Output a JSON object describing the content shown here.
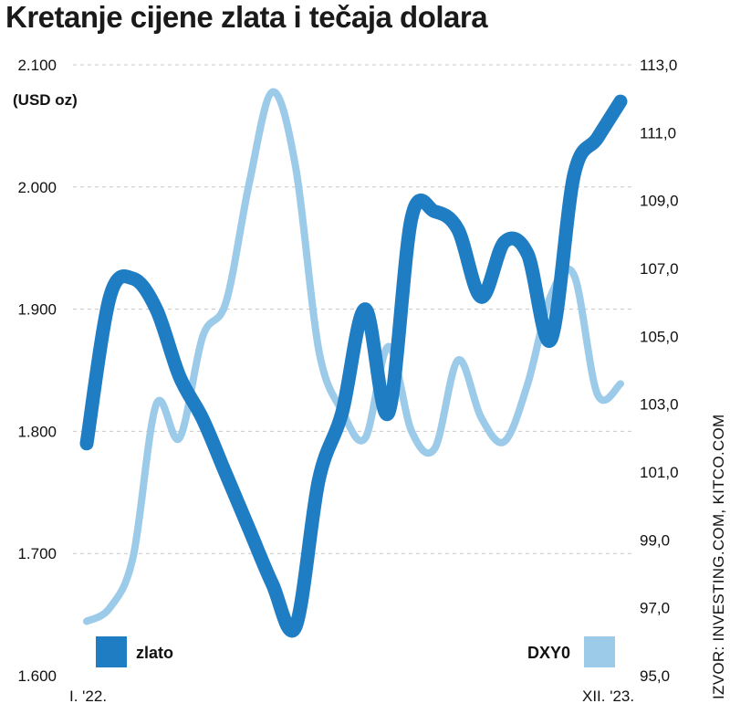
{
  "title": "Kretanje cijene zlata i tečaja dolara",
  "source": "IZVOR: INVESTING.COM, KITCO.COM",
  "colors": {
    "gold": "#1f7dc4",
    "dxy": "#9ccbea"
  },
  "chart_data": {
    "type": "line",
    "title": "Kretanje cijene zlata i tečaja dolara",
    "left_axis": {
      "unit_label": "(USD oz)",
      "ylim": [
        1600,
        2100
      ],
      "ticks": [
        "1.600",
        "1.700",
        "1.800",
        "1.900",
        "2.000",
        "2.100"
      ],
      "tick_values": [
        1600,
        1700,
        1800,
        1900,
        2000,
        2100
      ]
    },
    "right_axis": {
      "ylim": [
        95,
        113
      ],
      "ticks": [
        "95,0",
        "97,0",
        "99,0",
        "101,0",
        "103,0",
        "105,0",
        "107,0",
        "109,0",
        "111,0",
        "113,0"
      ],
      "tick_values": [
        95,
        97,
        99,
        101,
        103,
        105,
        107,
        109,
        111,
        113
      ]
    },
    "x_labels": [
      "I. '22.",
      "XII. '23."
    ],
    "grid": true,
    "legend": [
      {
        "name": "zlato",
        "position": "bottom-left"
      },
      {
        "name": "DXY0",
        "position": "bottom-right"
      }
    ],
    "x": [
      "2022-01",
      "2022-02",
      "2022-03",
      "2022-04",
      "2022-05",
      "2022-06",
      "2022-07",
      "2022-08",
      "2022-09",
      "2022-10",
      "2022-11",
      "2022-12",
      "2023-01",
      "2023-02",
      "2023-03",
      "2023-04",
      "2023-05",
      "2023-06",
      "2023-07",
      "2023-08",
      "2023-09",
      "2023-10",
      "2023-11",
      "2023-12"
    ],
    "series": [
      {
        "name": "zlato",
        "axis": "left",
        "values": [
          1790,
          1910,
          1925,
          1900,
          1845,
          1810,
          1765,
          1720,
          1675,
          1640,
          1760,
          1815,
          1900,
          1815,
          1975,
          1980,
          1965,
          1910,
          1955,
          1945,
          1875,
          2010,
          2040,
          2070
        ]
      },
      {
        "name": "DXY0",
        "axis": "right",
        "values": [
          96.6,
          97.0,
          98.5,
          103.0,
          102.0,
          105.0,
          106.0,
          109.5,
          112.2,
          110.0,
          104.6,
          102.8,
          102.0,
          104.7,
          102.2,
          101.7,
          104.3,
          102.6,
          101.9,
          103.6,
          106.2,
          106.8,
          103.3,
          103.6
        ]
      }
    ]
  }
}
